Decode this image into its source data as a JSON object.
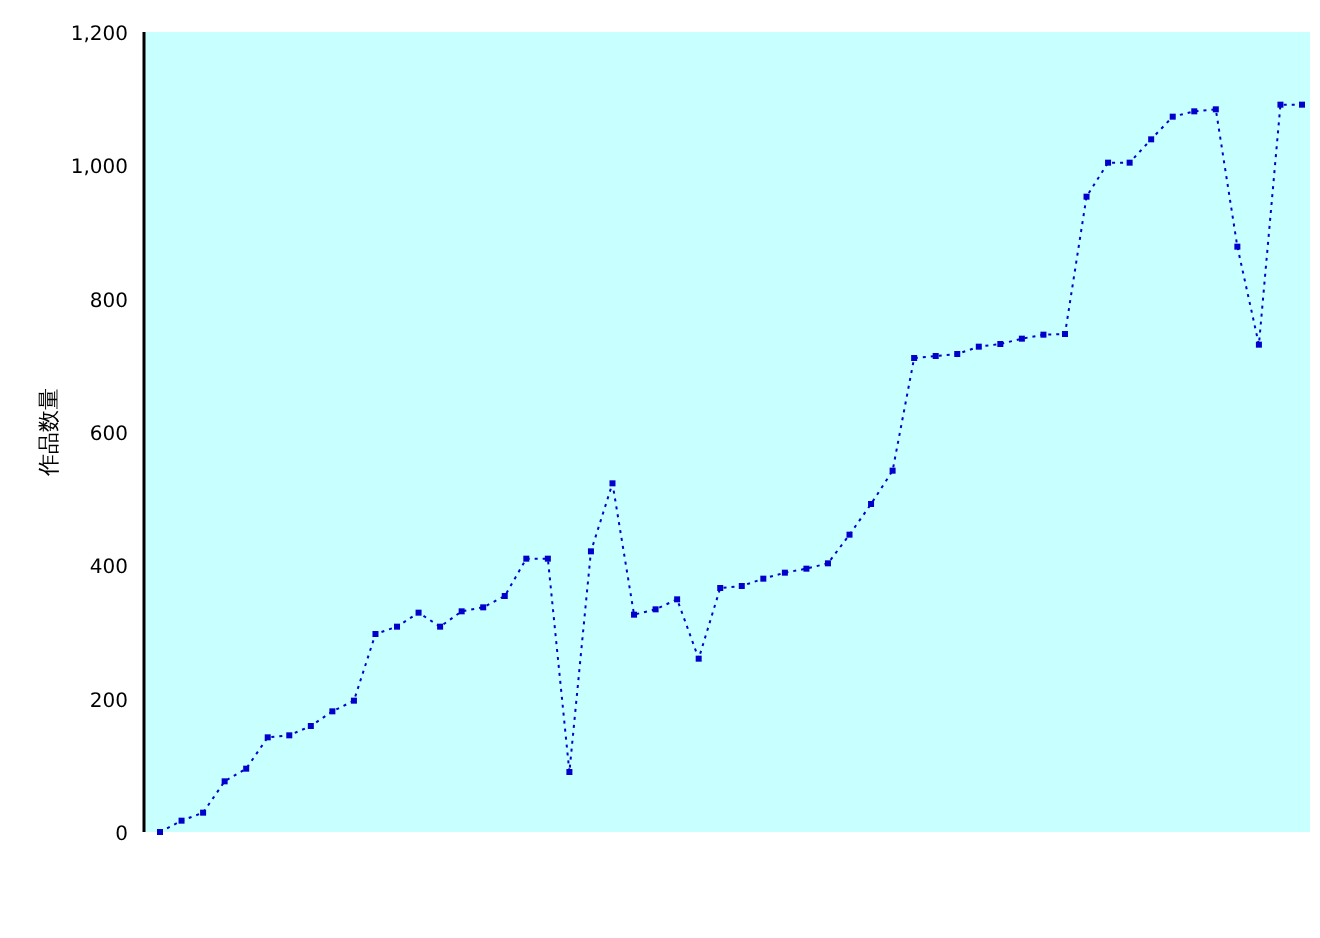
{
  "chart_data": {
    "type": "line",
    "ylabel": "作品数量",
    "tick_labels": "y",
    "marker": "square",
    "line_style": "dotted",
    "grid": false,
    "categories": [
      null,
      null,
      null,
      null,
      null,
      null,
      null,
      null,
      null,
      null,
      null,
      null,
      null,
      null,
      null,
      null,
      null,
      null,
      null,
      null,
      null,
      null,
      null,
      null,
      null,
      null,
      null,
      null,
      null,
      null,
      null,
      null,
      null,
      null,
      null,
      null,
      null,
      null,
      null,
      null,
      null,
      null,
      null,
      null,
      null,
      null,
      null,
      null,
      null,
      null,
      null,
      null,
      null,
      null
    ],
    "ylim": [
      0,
      1200
    ],
    "yticks": [
      0,
      {
        "value": 200,
        "label": "200"
      },
      {
        "value": 400,
        "label": "400"
      },
      {
        "value": 600,
        "label": "600"
      },
      {
        "value": 800,
        "label": "800"
      },
      {
        "value": 1000,
        "label": "1,000"
      },
      {
        "value": 1200,
        "label": "1,200"
      }
    ],
    "series": [
      {
        "color": "#0000cc",
        "values": [
          0,
          17,
          29,
          76,
          95,
          142,
          145,
          159,
          181,
          197,
          297,
          308,
          329,
          308,
          331,
          337,
          354,
          410,
          410,
          90,
          421,
          523,
          326,
          334,
          349,
          260,
          366,
          369,
          380,
          389,
          395,
          403,
          446,
          492,
          542,
          711,
          714,
          717,
          728,
          732,
          740,
          746,
          747,
          953,
          1004,
          1004,
          1039,
          1073,
          1081,
          1084,
          878,
          731,
          1091,
          1091
        ]
      }
    ]
  }
}
